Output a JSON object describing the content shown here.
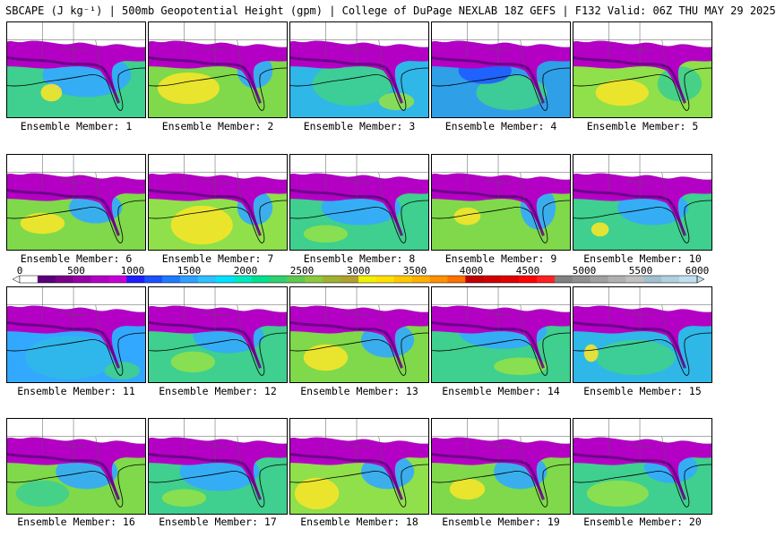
{
  "title": "SBCAPE (J kg⁻¹) | 500mb Geopotential Height (gpm) | College of DuPage NEXLAB 18Z GEFS | F132 Valid: 06Z THU MAY 29 2025",
  "caption_prefix": "Ensemble Member: ",
  "members": [
    {
      "id": "1",
      "bg": "#3fcf8e",
      "blobs": [
        [
          "#33a8ff",
          90,
          60,
          50,
          25
        ],
        [
          "#f5e42a",
          50,
          80,
          12,
          10
        ]
      ]
    },
    {
      "id": "2",
      "bg": "#7fd94a",
      "blobs": [
        [
          "#f5e42a",
          45,
          75,
          35,
          18
        ],
        [
          "#33a8ff",
          120,
          55,
          20,
          20
        ]
      ]
    },
    {
      "id": "3",
      "bg": "#2fb7e8",
      "blobs": [
        [
          "#3fcf8e",
          70,
          70,
          45,
          25
        ],
        [
          "#8fe04a",
          120,
          90,
          20,
          10
        ]
      ]
    },
    {
      "id": "4",
      "bg": "#2f9fe8",
      "blobs": [
        [
          "#3fcf8e",
          90,
          80,
          40,
          20
        ],
        [
          "#1e5bff",
          60,
          55,
          30,
          15
        ]
      ]
    },
    {
      "id": "5",
      "bg": "#8fe04a",
      "blobs": [
        [
          "#f5e42a",
          55,
          80,
          30,
          15
        ],
        [
          "#3fcf8e",
          120,
          70,
          25,
          20
        ]
      ]
    },
    {
      "id": "6",
      "bg": "#7fd94a",
      "blobs": [
        [
          "#f5e42a",
          40,
          78,
          25,
          12
        ],
        [
          "#33a8ff",
          100,
          60,
          30,
          18
        ]
      ]
    },
    {
      "id": "7",
      "bg": "#8fe04a",
      "blobs": [
        [
          "#f5e42a",
          60,
          80,
          35,
          22
        ],
        [
          "#33a8ff",
          120,
          60,
          20,
          20
        ]
      ]
    },
    {
      "id": "8",
      "bg": "#3fcf8e",
      "blobs": [
        [
          "#33a8ff",
          80,
          60,
          45,
          20
        ],
        [
          "#8fe04a",
          40,
          90,
          25,
          10
        ]
      ]
    },
    {
      "id": "9",
      "bg": "#7fd94a",
      "blobs": [
        [
          "#f5e42a",
          40,
          70,
          15,
          10
        ],
        [
          "#33a8ff",
          120,
          60,
          20,
          25
        ]
      ]
    },
    {
      "id": "10",
      "bg": "#3fcf8e",
      "blobs": [
        [
          "#33a8ff",
          90,
          60,
          40,
          20
        ],
        [
          "#f5e42a",
          30,
          85,
          10,
          8
        ]
      ]
    },
    {
      "id": "11",
      "bg": "#33a8ff",
      "blobs": [
        [
          "#2fb7e8",
          70,
          80,
          50,
          25
        ],
        [
          "#3fcf8e",
          130,
          95,
          20,
          10
        ]
      ]
    },
    {
      "id": "12",
      "bg": "#3fcf8e",
      "blobs": [
        [
          "#33a8ff",
          90,
          55,
          40,
          20
        ],
        [
          "#8fe04a",
          50,
          85,
          25,
          12
        ]
      ]
    },
    {
      "id": "13",
      "bg": "#7fd94a",
      "blobs": [
        [
          "#f5e42a",
          40,
          80,
          25,
          15
        ],
        [
          "#33a8ff",
          110,
          60,
          30,
          20
        ]
      ]
    },
    {
      "id": "14",
      "bg": "#3fcf8e",
      "blobs": [
        [
          "#33a8ff",
          80,
          50,
          50,
          20
        ],
        [
          "#8fe04a",
          100,
          90,
          30,
          10
        ]
      ]
    },
    {
      "id": "15",
      "bg": "#2fb7e8",
      "blobs": [
        [
          "#3fcf8e",
          70,
          80,
          45,
          20
        ],
        [
          "#f5e42a",
          20,
          75,
          8,
          10
        ]
      ]
    },
    {
      "id": "16",
      "bg": "#7fd94a",
      "blobs": [
        [
          "#33a8ff",
          90,
          60,
          35,
          20
        ],
        [
          "#3fcf8e",
          40,
          85,
          30,
          15
        ]
      ]
    },
    {
      "id": "17",
      "bg": "#3fcf8e",
      "blobs": [
        [
          "#33a8ff",
          80,
          60,
          45,
          22
        ],
        [
          "#8fe04a",
          40,
          90,
          25,
          10
        ]
      ]
    },
    {
      "id": "18",
      "bg": "#8fe04a",
      "blobs": [
        [
          "#f5e42a",
          30,
          85,
          25,
          18
        ],
        [
          "#33a8ff",
          110,
          60,
          30,
          20
        ]
      ]
    },
    {
      "id": "19",
      "bg": "#7fd94a",
      "blobs": [
        [
          "#f5e42a",
          40,
          80,
          20,
          12
        ],
        [
          "#33a8ff",
          100,
          60,
          30,
          20
        ]
      ]
    },
    {
      "id": "20",
      "bg": "#3fcf8e",
      "blobs": [
        [
          "#8fe04a",
          50,
          85,
          35,
          15
        ],
        [
          "#33a8ff",
          110,
          55,
          30,
          18
        ]
      ]
    }
  ],
  "colorbar": {
    "ticks": [
      "0",
      "500",
      "1000",
      "1500",
      "2000",
      "2500",
      "3000",
      "3500",
      "4000",
      "4500",
      "5000",
      "5500",
      "6000"
    ],
    "colors": [
      "#ffffff",
      "#5a007a",
      "#7a008a",
      "#9a00a8",
      "#b400c4",
      "#c800d8",
      "#1e1eff",
      "#1e50ff",
      "#1e7aff",
      "#2fa0ff",
      "#2fc0ff",
      "#00e0ff",
      "#00e8c0",
      "#00e090",
      "#30d070",
      "#60c850",
      "#8cc840",
      "#a0b030",
      "#b0a030",
      "#f0f000",
      "#ffe000",
      "#ffc800",
      "#ffb000",
      "#ff9000",
      "#ff7000",
      "#c00000",
      "#d00000",
      "#e00000",
      "#ff0000",
      "#ff2020",
      "#808080",
      "#909090",
      "#a0a0a0",
      "#b0b0b0",
      "#c0c0c0",
      "#a0c0d0",
      "#b0d0e0",
      "#c0e0f0"
    ]
  }
}
